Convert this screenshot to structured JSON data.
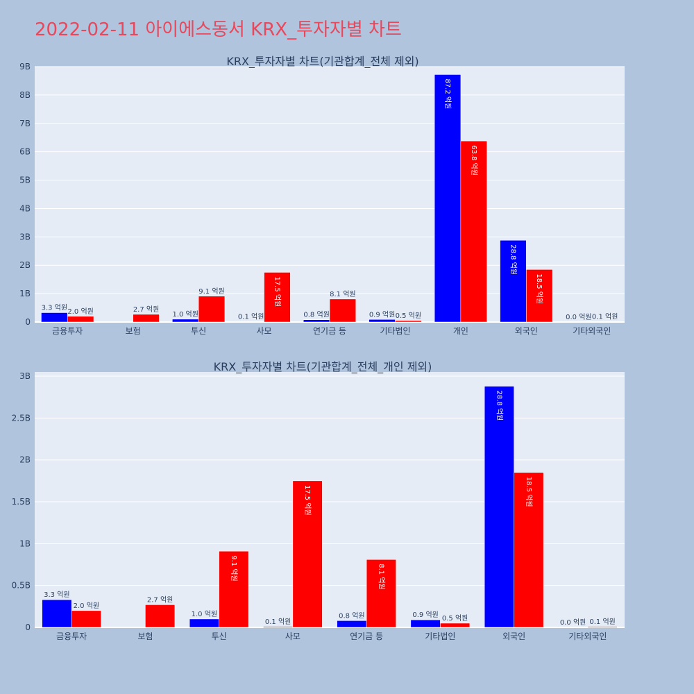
{
  "title": "2022-02-11 아이에스동서 KRX_투자자별 차트",
  "colors": {
    "buy": "#0000ff",
    "sell": "#ff0000",
    "plot_bg": "#e5ecf6",
    "page_bg": "#b0c4de",
    "title": "#e8485c",
    "text": "#2a3f5f"
  },
  "chart_data": [
    {
      "type": "bar",
      "title": "KRX_투자자별 차트(기관합계_전체 제외)",
      "categories": [
        "금융투자",
        "보험",
        "투신",
        "사모",
        "연기금 등",
        "기타법인",
        "개인",
        "외국인",
        "기타외국인"
      ],
      "series": [
        {
          "values": [
            330000000,
            0,
            100000000,
            10000000,
            80000000,
            90000000,
            8720000000,
            2880000000,
            0
          ],
          "labels": [
            "3.3 억원",
            "",
            "1.0 억원",
            "0.1 억원",
            "0.8 억원",
            "0.9 억원",
            "87.2 억원",
            "28.8 억원",
            "0.0 억원"
          ]
        },
        {
          "values": [
            200000000,
            270000000,
            910000000,
            1750000000,
            810000000,
            50000000,
            6380000000,
            1850000000,
            10000000
          ],
          "labels": [
            "2.0 억원",
            "2.7 억원",
            "9.1 억원",
            "17.5 억원",
            "8.1 억원",
            "0.5 억원",
            "63.8 억원",
            "18.5 억원",
            "0.1 억원"
          ]
        }
      ],
      "ylim": [
        0,
        9000000000
      ],
      "yticks": [
        0,
        1000000000,
        2000000000,
        3000000000,
        4000000000,
        5000000000,
        6000000000,
        7000000000,
        8000000000,
        9000000000
      ],
      "ytick_labels": [
        "0",
        "1B",
        "2B",
        "3B",
        "4B",
        "5B",
        "6B",
        "7B",
        "8B",
        "9B"
      ]
    },
    {
      "type": "bar",
      "title": "KRX_투자자별 차트(기관합계_전체_개인 제외)",
      "categories": [
        "금융투자",
        "보험",
        "투신",
        "사모",
        "연기금 등",
        "기타법인",
        "외국인",
        "기타외국인"
      ],
      "series": [
        {
          "values": [
            330000000,
            0,
            100000000,
            10000000,
            80000000,
            90000000,
            2880000000,
            0
          ],
          "labels": [
            "3.3 억원",
            "",
            "1.0 억원",
            "0.1 억원",
            "0.8 억원",
            "0.9 억원",
            "28.8 억원",
            "0.0 억원"
          ]
        },
        {
          "values": [
            200000000,
            270000000,
            910000000,
            1750000000,
            810000000,
            50000000,
            1850000000,
            10000000
          ],
          "labels": [
            "2.0 억원",
            "2.7 억원",
            "9.1 억원",
            "17.5 억원",
            "8.1 억원",
            "0.5 억원",
            "18.5 억원",
            "0.1 억원"
          ]
        }
      ],
      "ylim": [
        0,
        3050000000
      ],
      "yticks": [
        0,
        500000000,
        1000000000,
        1500000000,
        2000000000,
        2500000000,
        3000000000
      ],
      "ytick_labels": [
        "0",
        "0.5B",
        "1B",
        "1.5B",
        "2B",
        "2.5B",
        "3B"
      ]
    }
  ]
}
